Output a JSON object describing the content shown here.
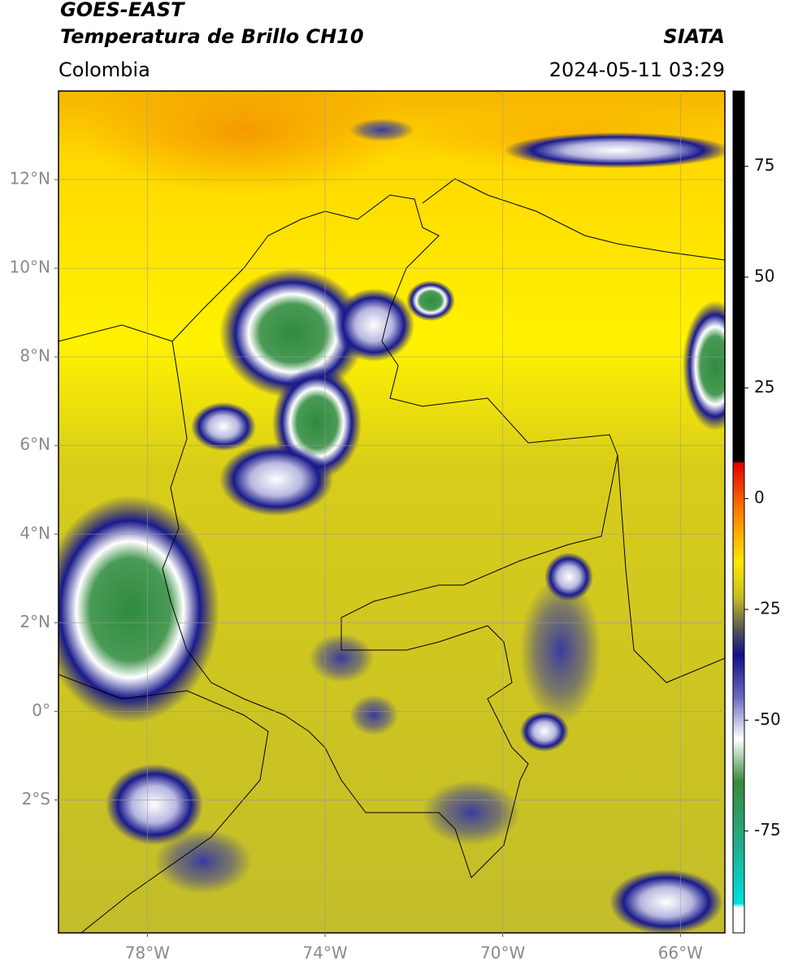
{
  "header": {
    "title_line1": "GOES-EAST",
    "title_line2": "Temperatura de Brillo CH10",
    "region": "Colombia",
    "source": "SIATA",
    "datetime": "2024-05-11 03:29"
  },
  "map": {
    "xlim": [
      -80,
      -65
    ],
    "ylim": [
      -5,
      14
    ],
    "xticks": [
      {
        "value": -78,
        "label": "78°W"
      },
      {
        "value": -74,
        "label": "74°W"
      },
      {
        "value": -70,
        "label": "70°W"
      },
      {
        "value": -66,
        "label": "66°W"
      }
    ],
    "yticks": [
      {
        "value": 12,
        "label": "12°N"
      },
      {
        "value": 10,
        "label": "10°N"
      },
      {
        "value": 8,
        "label": "8°N"
      },
      {
        "value": 6,
        "label": "6°N"
      },
      {
        "value": 4,
        "label": "4°N"
      },
      {
        "value": 2,
        "label": "2°N"
      },
      {
        "value": 0,
        "label": "0°"
      },
      {
        "value": -2,
        "label": "2°S"
      }
    ],
    "grid": true
  },
  "colorbar": {
    "lim": [
      -98,
      92
    ],
    "ticks": [
      75,
      50,
      25,
      0,
      -25,
      -50,
      -75
    ]
  }
}
